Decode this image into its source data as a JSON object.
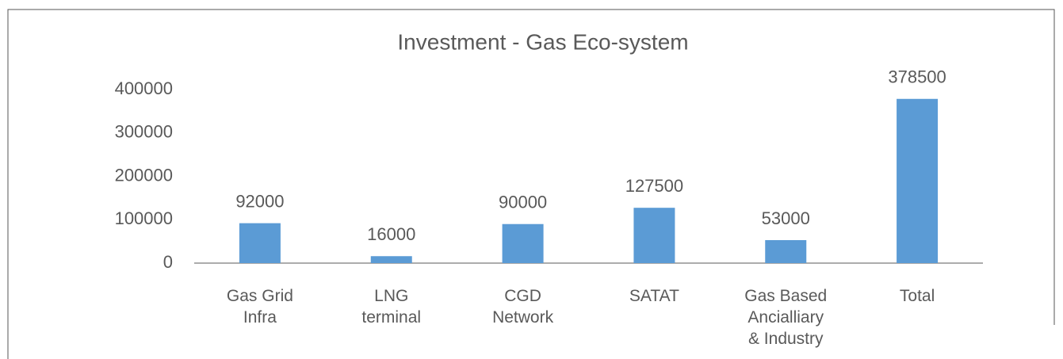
{
  "chart_data": {
    "type": "bar",
    "title": "Investment - Gas Eco-system",
    "categories": [
      "Gas Grid\nInfra",
      "LNG\nterminal",
      "CGD\nNetwork",
      "SATAT",
      "Gas Based\nAncialliary\n& Industry",
      "Total"
    ],
    "values": [
      92000,
      16000,
      90000,
      127500,
      53000,
      378500
    ],
    "color": "#5b9bd5",
    "ylim": [
      0,
      400000
    ],
    "yticks": [
      0,
      100000,
      200000,
      300000,
      400000
    ],
    "grid": false
  }
}
